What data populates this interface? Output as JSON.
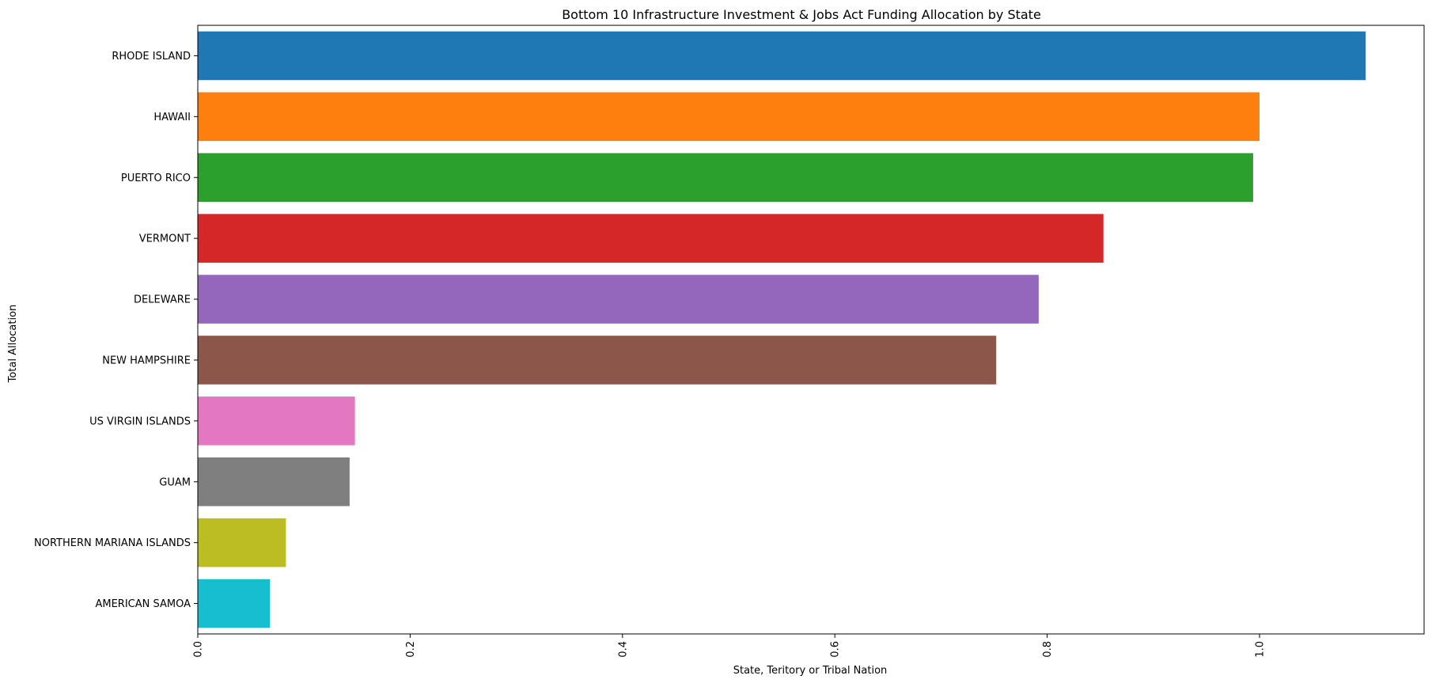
{
  "chart_data": {
    "type": "bar",
    "orientation": "horizontal",
    "title": "Bottom 10 Infrastructure Investment & Jobs Act Funding Allocation by State",
    "xlabel": "State, Teritory or Tribal Nation",
    "ylabel": "Total Allocation",
    "categories": [
      "RHODE ISLAND",
      "HAWAII",
      "PUERTO RICO",
      "VERMONT",
      "DELEWARE",
      "NEW HAMPSHIRE",
      "US VIRGIN ISLANDS",
      "GUAM",
      "NORTHERN MARIANA ISLANDS",
      "AMERICAN SAMOA"
    ],
    "values": [
      1.1,
      1.0,
      0.994,
      0.853,
      0.792,
      0.752,
      0.148,
      0.143,
      0.083,
      0.068
    ],
    "colors": [
      "#1f77b4",
      "#ff7f0e",
      "#2ca02c",
      "#d62728",
      "#9467bd",
      "#8c564b",
      "#e377c2",
      "#7f7f7f",
      "#bcbd22",
      "#17becf"
    ],
    "xticks": [
      "0.0",
      "0.2",
      "0.4",
      "0.6",
      "0.8",
      "1.0"
    ],
    "xtick_values": [
      0.0,
      0.2,
      0.4,
      0.6,
      0.8,
      1.0
    ],
    "xtick_rotation": "vertical",
    "xlim": [
      0,
      1.155
    ],
    "grid": false,
    "legend": "none"
  }
}
